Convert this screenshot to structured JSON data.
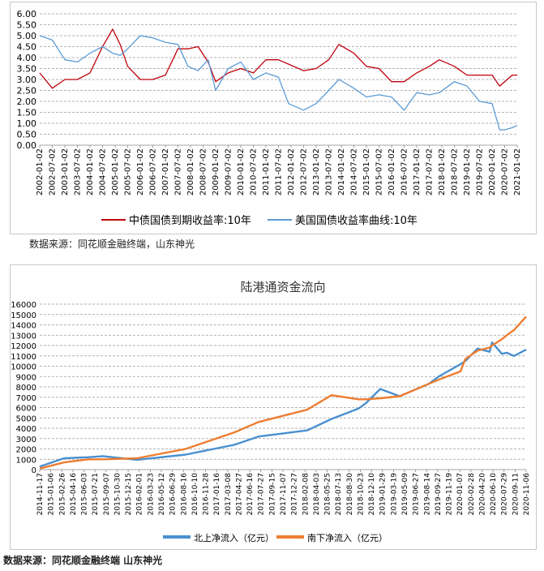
{
  "chart_data": [
    {
      "type": "line",
      "title": "",
      "xlabel": "",
      "ylabel": "",
      "ylim": [
        0,
        6
      ],
      "y_ticks": [
        "6.00",
        "5.50",
        "5.00",
        "4.50",
        "4.00",
        "3.50",
        "3.00",
        "2.50",
        "2.00",
        "1.50",
        "1.00",
        "0.50",
        "0.00"
      ],
      "x_ticks": [
        "2002-01-02",
        "2002-07-02",
        "2003-01-02",
        "2003-07-02",
        "2004-01-02",
        "2004-07-02",
        "2005-01-02",
        "2005-07-02",
        "2006-01-02",
        "2006-07-02",
        "2007-01-02",
        "2007-07-02",
        "2008-01-02",
        "2008-07-02",
        "2009-01-02",
        "2009-07-02",
        "2010-01-02",
        "2010-07-02",
        "2011-01-02",
        "2011-07-02",
        "2012-01-02",
        "2012-07-02",
        "2013-01-02",
        "2013-07-02",
        "2014-01-02",
        "2014-07-02",
        "2015-01-02",
        "2015-07-02",
        "2016-01-02",
        "2016-07-02",
        "2017-01-02",
        "2017-07-02",
        "2018-01-02",
        "2018-07-02",
        "2019-01-02",
        "2019-07-02",
        "2020-01-02",
        "2020-07-02",
        "2021-01-02"
      ],
      "grid": "horizontal dashed",
      "legend_position": "bottom",
      "x": [
        2002.0,
        2002.5,
        2003.0,
        2003.5,
        2004.0,
        2004.5,
        2004.9,
        2005.2,
        2005.5,
        2006.0,
        2006.5,
        2007.0,
        2007.5,
        2007.9,
        2008.3,
        2008.7,
        2009.0,
        2009.5,
        2010.0,
        2010.5,
        2011.0,
        2011.5,
        2011.9,
        2012.5,
        2013.0,
        2013.5,
        2013.9,
        2014.5,
        2015.0,
        2015.5,
        2016.0,
        2016.5,
        2017.0,
        2017.5,
        2017.9,
        2018.5,
        2019.0,
        2019.5,
        2020.0,
        2020.3,
        2020.5,
        2020.8,
        2021.0
      ],
      "series": [
        {
          "name": "中债国债到期收益率:10年",
          "color": "#c0000b",
          "values": [
            3.3,
            2.6,
            3.0,
            3.0,
            3.3,
            4.5,
            5.3,
            4.6,
            3.6,
            3.0,
            3.0,
            3.2,
            4.4,
            4.4,
            4.5,
            3.8,
            2.9,
            3.3,
            3.5,
            3.3,
            3.9,
            3.9,
            3.7,
            3.4,
            3.5,
            3.9,
            4.6,
            4.2,
            3.6,
            3.5,
            2.9,
            2.9,
            3.3,
            3.6,
            3.9,
            3.6,
            3.2,
            3.2,
            3.2,
            2.7,
            2.9,
            3.2,
            3.2
          ]
        },
        {
          "name": "美国国债收益率曲线:10年",
          "color": "#5b9bd5",
          "values": [
            5.0,
            4.8,
            3.9,
            3.8,
            4.2,
            4.5,
            4.2,
            4.1,
            4.4,
            5.0,
            4.9,
            4.7,
            4.6,
            3.6,
            3.4,
            3.9,
            2.5,
            3.5,
            3.8,
            3.0,
            3.3,
            3.1,
            1.9,
            1.6,
            1.9,
            2.5,
            3.0,
            2.6,
            2.2,
            2.3,
            2.2,
            1.6,
            2.4,
            2.3,
            2.4,
            2.9,
            2.7,
            2.0,
            1.9,
            0.7,
            0.7,
            0.8,
            0.9
          ]
        }
      ]
    },
    {
      "type": "line",
      "title": "陆港通资金流向",
      "xlabel": "",
      "ylabel": "",
      "ylim": [
        0,
        16000
      ],
      "y_ticks": [
        "16000",
        "15000",
        "14000",
        "13000",
        "12000",
        "11000",
        "10000",
        "9000",
        "8000",
        "7000",
        "6000",
        "5000",
        "4000",
        "3000",
        "2000",
        "1000",
        "0"
      ],
      "x_ticks": [
        "2014-11-17",
        "2015-01-06",
        "2015-02-26",
        "2015-04-16",
        "2015-06-03",
        "2015-07-21",
        "2015-09-07",
        "2015-10-30",
        "2015-12-15",
        "2016-02-01",
        "2016-03-23",
        "2016-05-12",
        "2016-06-29",
        "2016-08-16",
        "2016-10-10",
        "2016-11-28",
        "2017-01-16",
        "2017-03-08",
        "2017-04-27",
        "2017-06-16",
        "2017-07-27",
        "2017-09-15",
        "2017-11-07",
        "2017-12-27",
        "2018-02-08",
        "2018-04-03",
        "2018-05-25",
        "2018-07-13",
        "2018-08-30",
        "2018-10-23",
        "2018-12-10",
        "2019-01-29",
        "2019-03-19",
        "2019-05-09",
        "2019-06-27",
        "2019-08-14",
        "2019-09-27",
        "2019-11-19",
        "2020-01-07",
        "2020-02-28",
        "2020-04-20",
        "2020-06-10",
        "2020-07-29",
        "2020-09-11",
        "2020-11-06"
      ],
      "grid": "horizontal dashed",
      "legend_position": "bottom",
      "x": [
        0.0,
        0.05,
        0.1,
        0.13,
        0.2,
        0.3,
        0.4,
        0.45,
        0.5,
        0.55,
        0.6,
        0.655,
        0.67,
        0.7,
        0.74,
        0.8,
        0.82,
        0.865,
        0.875,
        0.9,
        0.925,
        0.93,
        0.95,
        0.96,
        0.975,
        1.0
      ],
      "series": [
        {
          "name": "北上净流入（亿元）",
          "color": "#4a90d0",
          "values": [
            300,
            1100,
            1200,
            1300,
            950,
            1450,
            2400,
            3200,
            3500,
            3800,
            4900,
            5900,
            6400,
            7800,
            7100,
            8300,
            9000,
            10200,
            10500,
            11700,
            11400,
            12300,
            11200,
            11300,
            11000,
            11600
          ]
        },
        {
          "name": "南下净流入（亿元）",
          "color": "#ed7d31",
          "values": [
            100,
            700,
            1000,
            1000,
            1100,
            2000,
            3600,
            4600,
            5200,
            5800,
            7200,
            6800,
            6800,
            6900,
            7100,
            8300,
            8700,
            9500,
            10700,
            11500,
            11800,
            12000,
            12600,
            13000,
            13500,
            14800
          ]
        }
      ]
    }
  ],
  "sources": {
    "top": "数据来源：同花顺金融终端，山东神光",
    "bottom": "数据来源：同花顺金融终端  山东神光"
  }
}
